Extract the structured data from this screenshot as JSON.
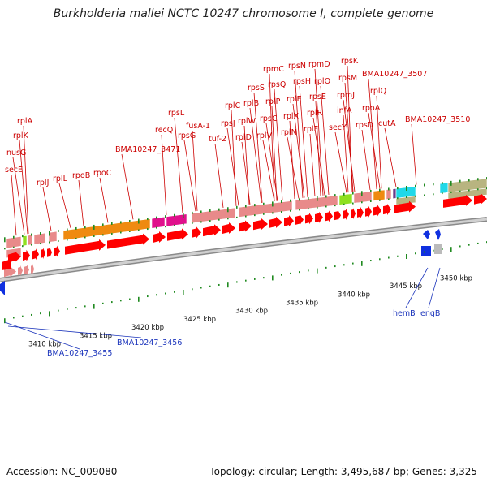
{
  "title": "Burkholderia mallei NCTC 10247 chromosome I, complete genome",
  "footer": {
    "accession": "Accession: NC_009080",
    "summary": "Topology: circular; Length: 3,495,687 bp; Genes: 3,325"
  },
  "colors": {
    "label_red": "#cc0000",
    "label_blue": "#1a33bb",
    "gene_red": "#ff0000",
    "pink": "#e88a8a",
    "orange": "#ef8a10",
    "magenta": "#e0108c",
    "lime": "#8fe020",
    "cyan": "#20d8e8",
    "khaki": "#b8b480",
    "blue": "#1030e0",
    "tick_green": "#208a20"
  },
  "kbp_ticks": [
    "3410 kbp",
    "3415 kbp",
    "3420 kbp",
    "3425 kbp",
    "3430 kbp",
    "3435 kbp",
    "3440 kbp",
    "3445 kbp",
    "3450 kbp"
  ],
  "red_labels": [
    "rplA",
    "rplK",
    "nusG",
    "secE",
    "rplJ",
    "rplL",
    "rpoB",
    "rpoC",
    "BMA10247_3471",
    "recQ",
    "rpsL",
    "rpsG",
    "fusA-1",
    "tuf-2",
    "rpsJ",
    "rplC",
    "rplD",
    "rplB",
    "rplW",
    "rpsS",
    "rplV",
    "rpmC",
    "rpsQ",
    "rpsC",
    "rplP",
    "rpsN",
    "rplN",
    "rplX",
    "rpsH",
    "rplE",
    "rplF",
    "rpmD",
    "rplR",
    "rpsE",
    "rplO",
    "secY",
    "rpsK",
    "rpsM",
    "rpmJ",
    "infA",
    "rpsD",
    "rpoA",
    "rplQ",
    "BMA10247_3507",
    "cutA",
    "BMA10247_3510"
  ],
  "blue_labels": [
    "hemB",
    "engB",
    "BMA10247_3455",
    "BMA10247_3456"
  ]
}
